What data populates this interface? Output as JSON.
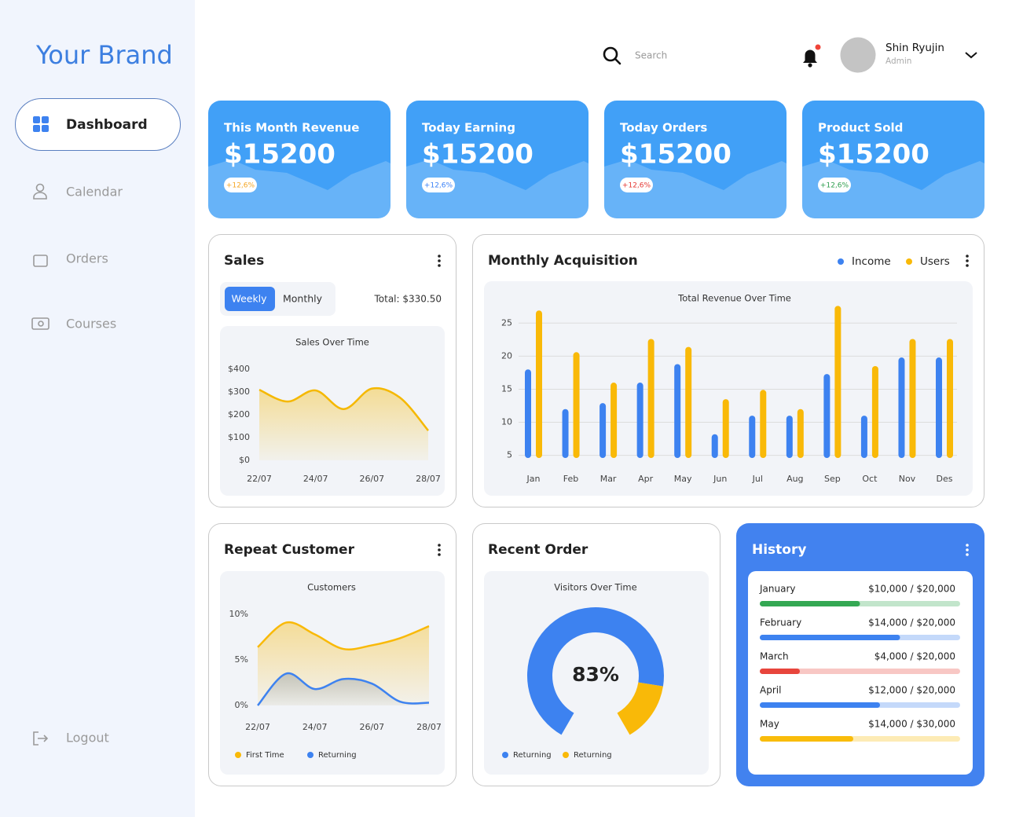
{
  "sidebar": {
    "brand": "Your Brand",
    "menu": [
      "Dashboard",
      "Calendar",
      "Orders",
      "Courses"
    ],
    "logout": "Logout"
  },
  "header": {
    "search": "Search",
    "user": {
      "name": "Shin Ryujin",
      "role": "Admin"
    }
  },
  "cards": [
    {
      "title": "This Month Revenue",
      "value": "$15200",
      "change": "+12,6%",
      "change_color": "#f5a623"
    },
    {
      "title": "Today Earning",
      "value": "$15200",
      "change": "+12,6%",
      "change_color": "#3b82f6"
    },
    {
      "title": "Today Orders",
      "value": "$15200",
      "change": "+12,6%",
      "change_color": "#e53935"
    },
    {
      "title": "Product Sold",
      "value": "$15200",
      "change": "+12,6%",
      "change_color": "#2e9e4f"
    }
  ],
  "sales": {
    "title": "Sales",
    "tabs": [
      "Weekly",
      "Monthly"
    ],
    "total": "Total: $330.50",
    "chart": {
      "type": "line",
      "title": "Sales Over Time",
      "categories": [
        "22/07",
        null,
        "24/07",
        null,
        "26/07",
        null,
        "28/07"
      ],
      "values": [
        310,
        258,
        307,
        225,
        315,
        275,
        131
      ],
      "color": "#f5b800",
      "ylim": [
        0,
        400
      ],
      "yticks": [
        {
          "value": 0,
          "label": "$0"
        },
        {
          "value": 100,
          "label": "$100"
        },
        {
          "value": 200,
          "label": "$200"
        },
        {
          "value": 300,
          "label": "$300"
        },
        {
          "value": 400,
          "label": "$400"
        }
      ]
    }
  },
  "acquisition": {
    "title": "Monthly Acquisition",
    "chart": {
      "type": "bar",
      "title": "Total Revenue Over Time",
      "categories": [
        "Jan",
        "Feb",
        "Mar",
        "Apr",
        "May",
        "Jun",
        "Jul",
        "Aug",
        "Sep",
        "Oct",
        "Nov",
        "Des"
      ],
      "series": [
        {
          "name": "Income",
          "color": "#3d82f0",
          "values": [
            18.0,
            12.0,
            12.9,
            16.0,
            18.8,
            8.2,
            11.0,
            11.0,
            17.3,
            11.0,
            19.8,
            19.8
          ]
        },
        {
          "name": "Users",
          "color": "#f9b908",
          "values": [
            26.9,
            20.6,
            16.0,
            22.6,
            21.4,
            13.5,
            14.9,
            12.0,
            27.6,
            18.5,
            22.6,
            22.6
          ]
        }
      ],
      "ylim": [
        4.6,
        28
      ],
      "yticks": [
        5,
        10,
        15,
        20,
        25
      ],
      "grid": true
    }
  },
  "repeat": {
    "title": "Repeat Customer",
    "chart": {
      "type": "area",
      "title": "Customers",
      "categories": [
        "22/07",
        null,
        "24/07",
        null,
        "26/07",
        null,
        "28/07"
      ],
      "series": [
        {
          "name": "First Time",
          "color": "#f9b908",
          "values": [
            6.4,
            9.1,
            7.8,
            6.2,
            6.6,
            7.4,
            8.7
          ]
        },
        {
          "name": "Returning",
          "color": "#3d82f0",
          "values": [
            0,
            3.5,
            1.8,
            2.9,
            2.4,
            0.4,
            0.3
          ]
        }
      ],
      "ylim": [
        0,
        10
      ],
      "yticks": [
        {
          "value": 0,
          "label": "0%"
        },
        {
          "value": 5,
          "label": "5%"
        },
        {
          "value": 10,
          "label": "10%"
        }
      ]
    }
  },
  "recent": {
    "title": "Recent Order",
    "chart": {
      "type": "pie",
      "title": "Visitors Over Time",
      "categories": [
        "Returning",
        "Returning"
      ],
      "values": [
        83,
        17
      ],
      "value_labels": [
        "83%",
        null
      ],
      "colors": [
        "#3d82f0",
        "#f9b908"
      ]
    }
  },
  "history": {
    "title": "History",
    "rows": [
      {
        "month": "January",
        "value": 10000,
        "max": 20000,
        "label": "$10,000 / $20,000",
        "color": "#34a853"
      },
      {
        "month": "February",
        "value": 14000,
        "max": 20000,
        "label": "$14,000 / $20,000",
        "color": "#3d82f0"
      },
      {
        "month": "March",
        "value": 4000,
        "max": 20000,
        "label": "$4,000 / $20,000",
        "color": "#e8453c"
      },
      {
        "month": "April",
        "value": 12000,
        "max": 20000,
        "label": "$12,000 / $20,000",
        "color": "#3d82f0"
      },
      {
        "month": "May",
        "value": 14000,
        "max": 30000,
        "label": "$14,000 / $30,000",
        "color": "#f9bc0b"
      }
    ]
  }
}
